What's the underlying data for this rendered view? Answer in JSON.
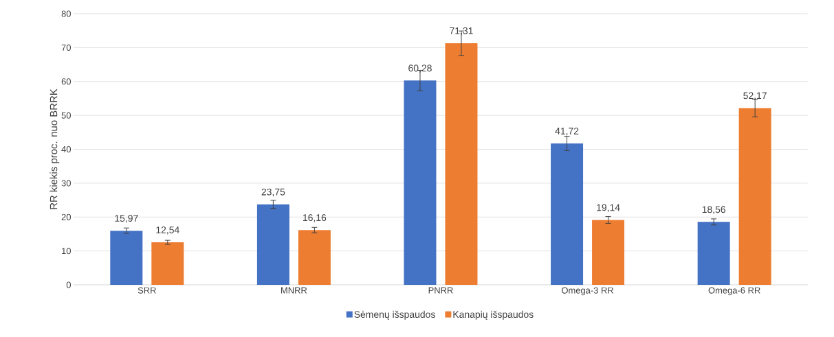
{
  "chart_data": {
    "type": "bar",
    "ylabel": "RR kiekis proc. nuo BRRK",
    "categories": [
      "SRR",
      "MNRR",
      "PNRR",
      "Omega-3 RR",
      "Omega-6 RR"
    ],
    "series": [
      {
        "name": "Sėmenų išspaudos",
        "color": "#4472c4",
        "values": [
          15.97,
          23.75,
          60.28,
          41.72,
          18.56
        ],
        "value_labels": [
          "15,97",
          "23,75",
          "60,28",
          "41,72",
          "18,56"
        ],
        "errors": [
          0.8,
          1.2,
          3.0,
          2.1,
          0.9
        ]
      },
      {
        "name": "Kanapių išspaudos",
        "color": "#ed7d31",
        "values": [
          12.54,
          16.16,
          71.31,
          19.14,
          52.17
        ],
        "value_labels": [
          "12,54",
          "16,16",
          "71,31",
          "19,14",
          "52,17"
        ],
        "errors": [
          0.6,
          0.8,
          3.6,
          1.0,
          2.6
        ]
      }
    ],
    "ylim": [
      0,
      80
    ],
    "yticks": [
      0,
      10,
      20,
      30,
      40,
      50,
      60,
      70,
      80
    ],
    "grid": "y",
    "legend": "bottom"
  }
}
